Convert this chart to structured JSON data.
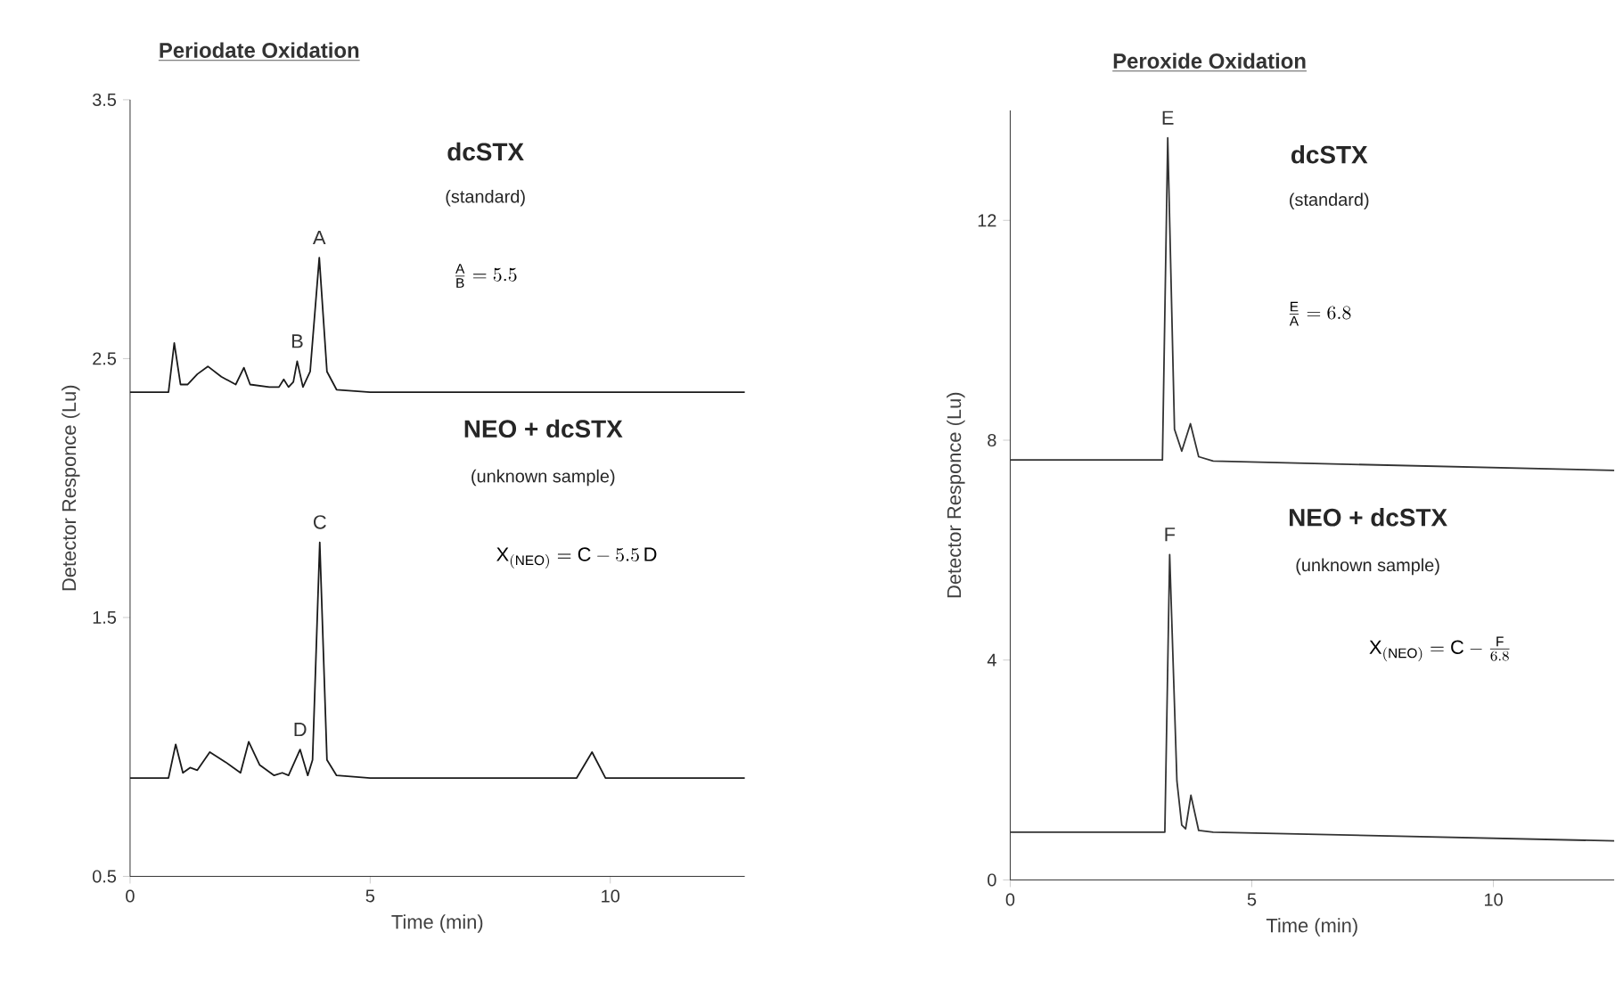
{
  "chart_data": [
    {
      "type": "line",
      "title": "Periodate Oxidation",
      "xlabel": "Time (min)",
      "ylabel": "Detector Responce (Lu)",
      "xlim": [
        0,
        12.8
      ],
      "ylim": [
        0.5,
        3.5
      ],
      "xticks": [
        0,
        5,
        10
      ],
      "yticks": [
        0.5,
        1.5,
        2.5,
        3.5
      ],
      "marker": "none",
      "line_style": "solid",
      "series": [
        {
          "color": "#1a1a1a",
          "x": [
            0,
            0.8,
            0.92,
            1.05,
            1.2,
            1.4,
            1.62,
            1.9,
            2.2,
            2.37,
            2.5,
            2.9,
            3.1,
            3.2,
            3.3,
            3.4,
            3.48,
            3.6,
            3.75,
            3.94,
            4.1,
            4.3,
            5,
            8,
            12.8
          ],
          "values": [
            2.37,
            2.37,
            2.56,
            2.4,
            2.4,
            2.44,
            2.47,
            2.43,
            2.4,
            2.465,
            2.4,
            2.39,
            2.39,
            2.42,
            2.39,
            2.41,
            2.49,
            2.39,
            2.45,
            2.89,
            2.45,
            2.38,
            2.37,
            2.37,
            2.37
          ]
        },
        {
          "color": "#1a1a1a",
          "x": [
            0,
            0.8,
            0.95,
            1.1,
            1.25,
            1.4,
            1.66,
            2.0,
            2.3,
            2.47,
            2.7,
            3.0,
            3.17,
            3.3,
            3.54,
            3.7,
            3.8,
            3.95,
            4.1,
            4.3,
            5,
            9.3,
            9.62,
            9.9,
            12.8
          ],
          "values": [
            0.88,
            0.88,
            1.01,
            0.9,
            0.92,
            0.91,
            0.98,
            0.94,
            0.9,
            1.02,
            0.93,
            0.89,
            0.9,
            0.89,
            0.99,
            0.89,
            0.95,
            1.79,
            0.95,
            0.89,
            0.88,
            0.88,
            0.98,
            0.88,
            0.88
          ]
        }
      ],
      "annotations": [
        {
          "text": "A",
          "x": 3.94,
          "y": 2.89
        },
        {
          "text": "B",
          "x": 3.48,
          "y": 2.49
        },
        {
          "text": "C",
          "x": 3.95,
          "y": 1.79
        },
        {
          "text": "D",
          "x": 3.54,
          "y": 0.99
        },
        "**dcSTX**",
        "(standard)",
        "\\frac{\\mathrm{A}}{\\mathrm{B}} = 5.5",
        "**NEO + dcSTX**",
        "(unknown sample)",
        "\\mathrm{X}_{(\\mathrm{NEO})} = \\mathrm{C} - 5.5\\,\\mathrm{D}"
      ]
    },
    {
      "type": "line",
      "title": "Peroxide Oxidation",
      "xlabel": "Time (min)",
      "ylabel": "Detector Responce (Lu)",
      "xlim": [
        0,
        12.5
      ],
      "ylim": [
        0,
        14
      ],
      "xticks": [
        0,
        5,
        10
      ],
      "yticks": [
        0,
        4,
        8,
        12
      ],
      "marker": "none",
      "line_style": "solid",
      "series": [
        {
          "color": "#333333",
          "x": [
            0,
            3.15,
            3.26,
            3.4,
            3.55,
            3.73,
            3.9,
            4.2,
            12.5
          ],
          "values": [
            7.64,
            7.64,
            13.5,
            8.2,
            7.8,
            8.3,
            7.7,
            7.62,
            7.45
          ]
        },
        {
          "color": "#333333",
          "x": [
            0,
            3.2,
            3.3,
            3.45,
            3.55,
            3.63,
            3.74,
            3.9,
            4.2,
            12.5
          ],
          "values": [
            0.87,
            0.87,
            5.92,
            1.8,
            1.0,
            0.93,
            1.54,
            0.9,
            0.87,
            0.71
          ]
        }
      ],
      "annotations": [
        {
          "text": "E",
          "x": 3.26,
          "y": 13.5
        },
        {
          "text": "F",
          "x": 3.3,
          "y": 5.92
        },
        "**dcSTX**",
        "(standard)",
        "\\frac{\\mathrm{E}}{\\mathrm{A}} = 6.8",
        "**NEO + dcSTX**",
        "(unknown sample)",
        "\\mathrm{X}_{(\\mathrm{NEO})} = \\mathrm{C} - \\frac{\\mathrm{F}}{6.8}"
      ]
    }
  ]
}
